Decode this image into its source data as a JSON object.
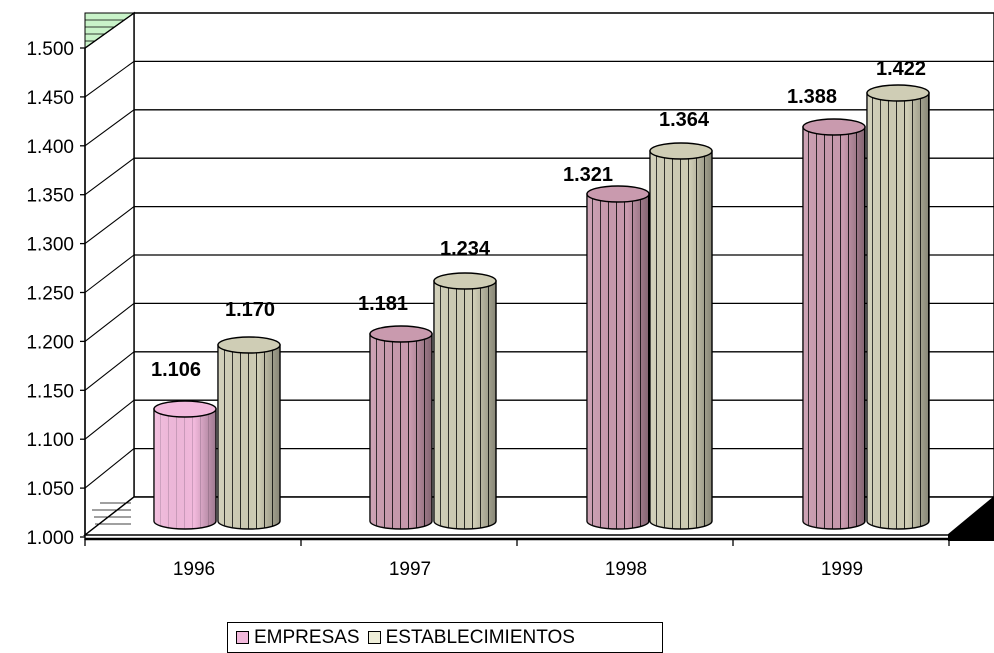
{
  "chart_data": {
    "type": "bar",
    "categories": [
      "1996",
      "1997",
      "1998",
      "1999"
    ],
    "series": [
      {
        "name": "EMPRESAS",
        "values": [
          1106,
          1181,
          1321,
          1388
        ],
        "labels": [
          "1.106",
          "1.181",
          "1.321",
          "1.388"
        ],
        "color": "#c99aae"
      },
      {
        "name": "ESTABLECIMIENTOS",
        "values": [
          1170,
          1234,
          1364,
          1422
        ],
        "labels": [
          "1.170",
          "1.234",
          "1.364",
          "1.422"
        ],
        "color": "#cfcdb5"
      }
    ],
    "first_bar_color": "#f2b9dc",
    "ylim": [
      1000,
      1500
    ],
    "yticks": [
      "1.000",
      "1.050",
      "1.100",
      "1.150",
      "1.200",
      "1.250",
      "1.300",
      "1.350",
      "1.400",
      "1.450",
      "1.500"
    ],
    "grid": true,
    "legend_position": "bottom",
    "style": "3d-cylinder"
  }
}
